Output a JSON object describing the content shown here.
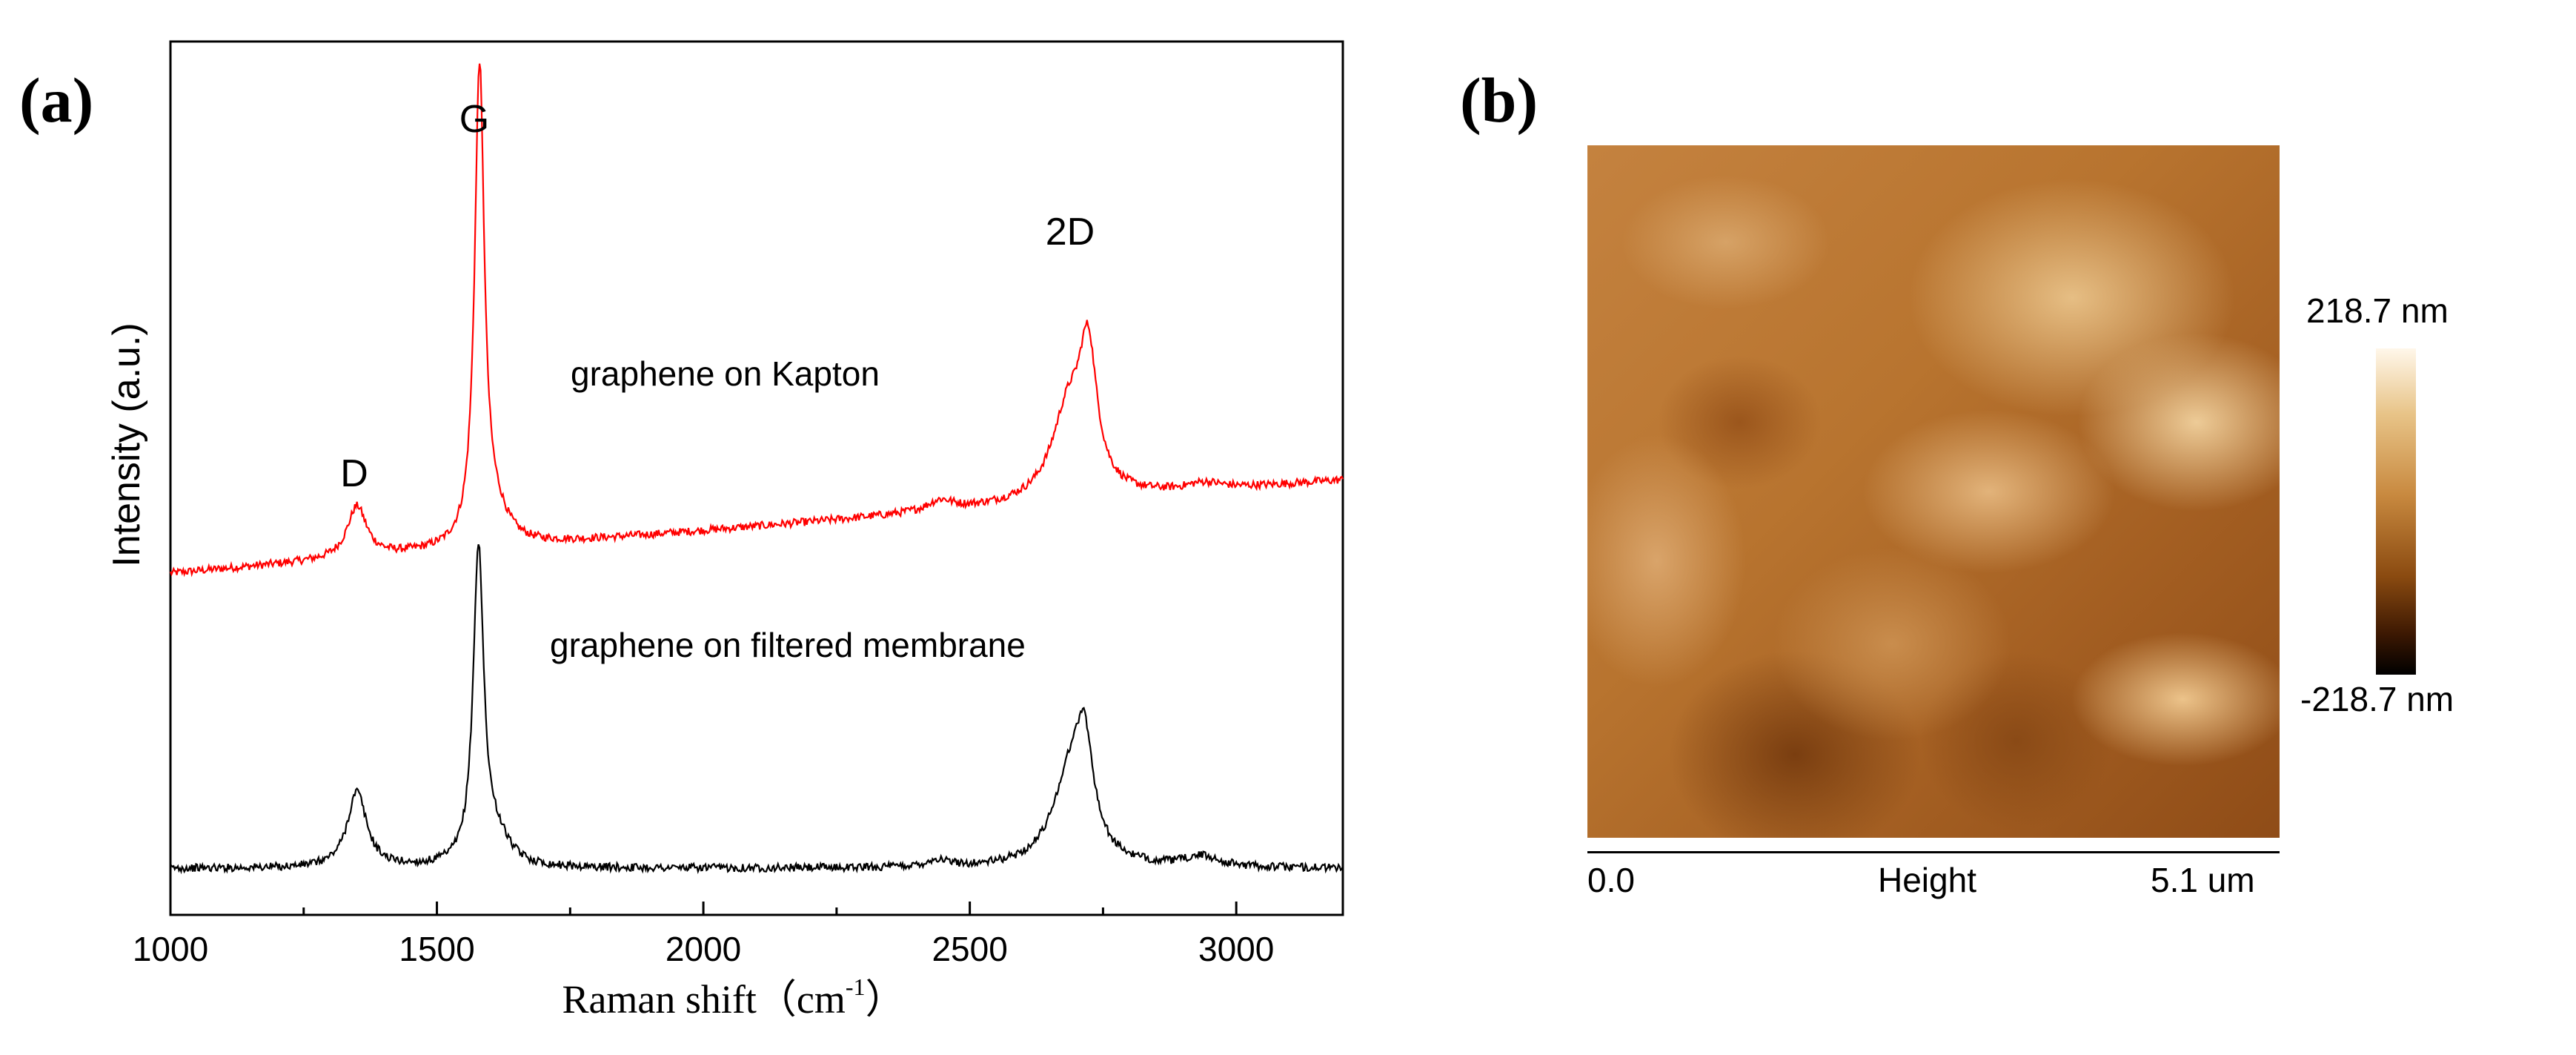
{
  "panels": {
    "a_label": "(a)",
    "b_label": "(b)"
  },
  "chart_data": [
    {
      "type": "line",
      "xlabel": "Raman shift",
      "xlabel_unit": "cm",
      "xlabel_unit_exponent": "-1",
      "ylabel": "Intensity (a.u.)",
      "xlim": [
        1000,
        3200
      ],
      "xticks": [
        1000,
        1500,
        2000,
        2500,
        3000
      ],
      "ylim": [
        0,
        1
      ],
      "peaks": [
        {
          "label": "D",
          "x": 1350
        },
        {
          "label": "G",
          "x": 1580
        },
        {
          "label": "2D",
          "x": 2720
        }
      ],
      "series": [
        {
          "name": "graphene on Kapton",
          "color": "#ff0000",
          "baseline_start": 0.391,
          "baseline_slope": 0.1064,
          "peaks": [
            {
              "x": 1350,
              "height": 0.059,
              "width": 22
            },
            {
              "x": 1580,
              "height": 0.544,
              "width": 11
            },
            {
              "x": 1610,
              "height": 0.03,
              "width": 30
            },
            {
              "x": 2445,
              "height": 0.012,
              "width": 30
            },
            {
              "x": 2685,
              "height": 0.1,
              "width": 38
            },
            {
              "x": 2722,
              "height": 0.15,
              "width": 20
            },
            {
              "x": 2940,
              "height": 0.008,
              "width": 40
            }
          ]
        },
        {
          "name": "graphene on filtered membrane",
          "color": "#000000",
          "baseline_start": 0.053,
          "baseline_slope": 0.0,
          "peaks": [
            {
              "x": 1350,
              "height": 0.087,
              "width": 22
            },
            {
              "x": 1578,
              "height": 0.359,
              "width": 12
            },
            {
              "x": 1612,
              "height": 0.03,
              "width": 30
            },
            {
              "x": 2440,
              "height": 0.008,
              "width": 25
            },
            {
              "x": 2688,
              "height": 0.1,
              "width": 40
            },
            {
              "x": 2715,
              "height": 0.11,
              "width": 20
            },
            {
              "x": 2935,
              "height": 0.012,
              "width": 40
            }
          ]
        }
      ]
    }
  ],
  "afm": {
    "colorbar_max": "218.7 nm",
    "colorbar_min": "-218.7 nm",
    "scale_start": "0.0",
    "scale_mid": "Height",
    "scale_end": "5.1 um",
    "colors": [
      "#ffffff",
      "#e8c488",
      "#c8893f",
      "#8a4a10",
      "#000000"
    ]
  }
}
